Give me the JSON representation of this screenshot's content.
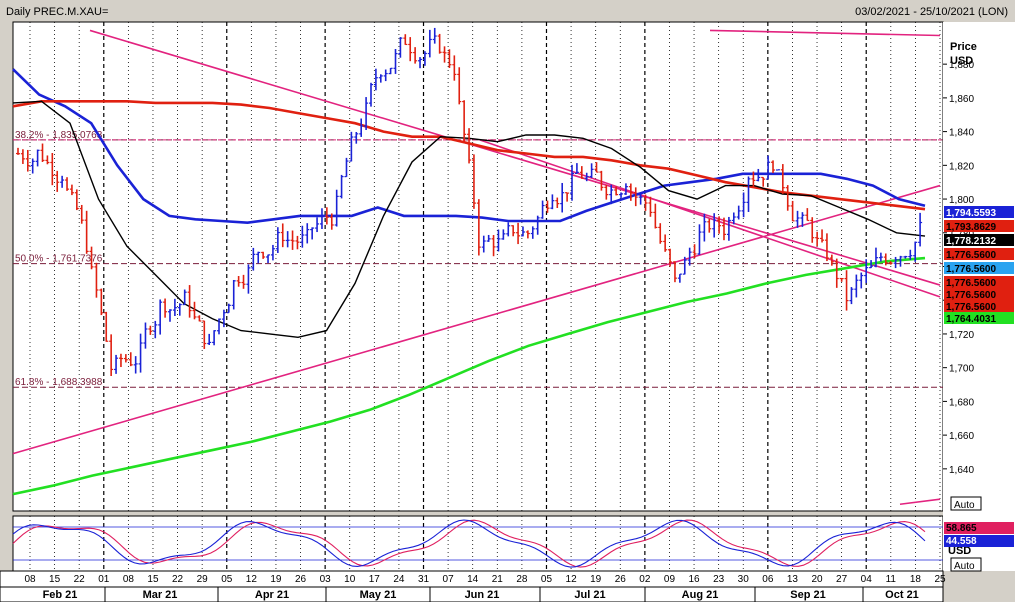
{
  "header": {
    "title": "Daily PREC.M.XAU=",
    "date_range": "03/02/2021 - 25/10/2021 (LON)"
  },
  "price_axis": {
    "unit_label_1": "Price",
    "unit_label_2": "USD",
    "ticks": [
      "1,880",
      "1,860",
      "1,840",
      "1,820",
      "1,800",
      "1,780",
      "1,760",
      "1,740",
      "1,720",
      "1,700",
      "1,680",
      "1,660",
      "1,640"
    ],
    "auto_label": "Auto"
  },
  "osc_axis": {
    "unit_label": "USD",
    "auto_label": "Auto"
  },
  "fib_levels": [
    {
      "label": "38.2% - 1,835.0763",
      "value": 1835.0763
    },
    {
      "label": "50.0% - 1,761.7376",
      "value": 1761.7376
    },
    {
      "label": "61.8% - 1,688.3988",
      "value": 1688.3988
    }
  ],
  "price_tags": [
    {
      "text": "1,794.5593",
      "value": 1794.5593,
      "bg": "#1a22d6",
      "fg": "#ffffff"
    },
    {
      "text": "1,793.8629",
      "value": 1793.8629,
      "bg": "#e02010",
      "fg": "#000000"
    },
    {
      "text": "1,778.2132",
      "value": 1778.2132,
      "bg": "#000000",
      "fg": "#ffffff"
    },
    {
      "text": "1,776.5600",
      "value": 1776.56,
      "bg": "#e02010",
      "fg": "#000000"
    },
    {
      "text": "1,776.5600",
      "value": 1776.56,
      "bg": "#29a3f0",
      "fg": "#000000"
    },
    {
      "text": "1,776.5600",
      "value": 1776.56,
      "bg": "#e02010",
      "fg": "#000000"
    },
    {
      "text": "1,776.5600",
      "value": 1776.56,
      "bg": "#e02010",
      "fg": "#000000"
    },
    {
      "text": "1,776.5600",
      "value": 1776.56,
      "bg": "#e02010",
      "fg": "#000000"
    },
    {
      "text": "1,764.4031",
      "value": 1764.4031,
      "bg": "#22e022",
      "fg": "#000000"
    }
  ],
  "osc_tags": [
    {
      "text": "58.865",
      "bg": "#e02060",
      "fg": "#000000"
    },
    {
      "text": "44.558",
      "bg": "#1a22d6",
      "fg": "#ffffff"
    }
  ],
  "x_axis": {
    "day_ticks": [
      "08",
      "15",
      "22",
      "01",
      "08",
      "15",
      "22",
      "29",
      "05",
      "12",
      "19",
      "26",
      "03",
      "10",
      "17",
      "24",
      "31",
      "07",
      "14",
      "21",
      "28",
      "05",
      "12",
      "19",
      "26",
      "02",
      "09",
      "16",
      "23",
      "30",
      "06",
      "13",
      "20",
      "27",
      "04",
      "11",
      "18",
      "25"
    ],
    "months": [
      "Feb 21",
      "Mar 21",
      "Apr 21",
      "May 21",
      "Jun 21",
      "Jul 21",
      "Aug 21",
      "Sep 21",
      "Oct 21"
    ]
  },
  "chart_data": {
    "type": "bar",
    "title": "Daily PREC.M.XAU=",
    "subtitle": "03/02/2021 - 25/10/2021 (LON)",
    "ylabel": "Price USD",
    "ylim": [
      1615,
      1905
    ],
    "grid": true,
    "series_closes": {
      "name": "",
      "weeks": [
        "08 Feb",
        "15 Feb",
        "22 Feb",
        "01 Mar",
        "08 Mar",
        "15 Mar",
        "22 Mar",
        "29 Mar",
        "05 Apr",
        "12 Apr",
        "19 Apr",
        "26 Apr",
        "03 May",
        "10 May",
        "17 May",
        "24 May",
        "31 May",
        "07 Jun",
        "14 Jun",
        "21 Jun",
        "28 Jun",
        "05 Jul",
        "12 Jul",
        "19 Jul",
        "26 Jul",
        "02 Aug",
        "09 Aug",
        "16 Aug",
        "23 Aug",
        "30 Aug",
        "06 Sep",
        "13 Sep",
        "20 Sep",
        "27 Sep",
        "04 Oct",
        "11 Oct",
        "18 Oct"
      ],
      "values": [
        1827,
        1815,
        1774,
        1700,
        1705,
        1736,
        1740,
        1711,
        1750,
        1770,
        1780,
        1776,
        1790,
        1840,
        1878,
        1895,
        1890,
        1878,
        1776,
        1775,
        1780,
        1805,
        1815,
        1810,
        1812,
        1795,
        1750,
        1778,
        1783,
        1815,
        1823,
        1788,
        1770,
        1742,
        1758,
        1768,
        1782
      ]
    },
    "moving_averages": [
      {
        "name": "",
        "color": "#1a22d6",
        "last": 1794.5593,
        "values": [
          1877,
          1862,
          1855,
          1845,
          1820,
          1800,
          1790,
          1788,
          1787,
          1786,
          1788,
          1790,
          1790,
          1790,
          1795,
          1790,
          1790,
          1790,
          1789,
          1787,
          1787,
          1787,
          1793,
          1798,
          1803,
          1808,
          1810,
          1812,
          1815,
          1815,
          1815,
          1815,
          1812,
          1808,
          1800,
          1796
        ]
      },
      {
        "name": "",
        "color": "#e02010",
        "last": 1793.8629,
        "values": [
          1855,
          1858,
          1858,
          1858,
          1858,
          1857,
          1857,
          1857,
          1856,
          1854,
          1851,
          1848,
          1845,
          1840,
          1837,
          1837,
          1833,
          1829,
          1827,
          1825,
          1825,
          1823,
          1820,
          1818,
          1814,
          1810,
          1807,
          1804,
          1802,
          1800,
          1798,
          1796,
          1794
        ]
      },
      {
        "name": "",
        "color": "#000000",
        "last": 1778.2132,
        "values": [
          1857,
          1858,
          1845,
          1800,
          1772,
          1755,
          1738,
          1729,
          1722,
          1720,
          1718,
          1722,
          1750,
          1790,
          1822,
          1837,
          1836,
          1834,
          1838,
          1838,
          1836,
          1830,
          1819,
          1805,
          1800,
          1808,
          1808,
          1803,
          1802,
          1795,
          1788,
          1780,
          1778
        ]
      },
      {
        "name": "",
        "color": "#22e022",
        "last": 1764.4031,
        "values": [
          1625,
          1630,
          1636,
          1641,
          1646,
          1651,
          1656,
          1662,
          1668,
          1675,
          1684,
          1694,
          1704,
          1713,
          1720,
          1727,
          1733,
          1739,
          1744,
          1750,
          1755,
          1759,
          1763,
          1765
        ]
      }
    ],
    "trendlines": [
      "descending channel from Feb high",
      "ascending support from Feb",
      "Sep resistance",
      "top-right falling line"
    ],
    "fib_retracements": [
      {
        "level": "38.2%",
        "value": 1835.0763
      },
      {
        "level": "50.0%",
        "value": 1761.7376
      },
      {
        "level": "61.8%",
        "value": 1688.3988
      }
    ],
    "oscillator": {
      "values_last": [
        58.865,
        44.558
      ],
      "colors": [
        "#e02060",
        "#1a22d6"
      ]
    }
  }
}
